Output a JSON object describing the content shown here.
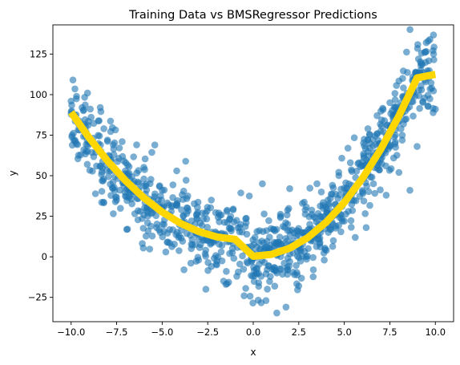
{
  "chart_data": {
    "type": "scatter",
    "title": "Training Data vs BMSRegressor Predictions",
    "xlabel": "x",
    "ylabel": "y",
    "xlim": [
      -11.0,
      11.0
    ],
    "ylim": [
      -40,
      143
    ],
    "xticks": [
      -10.0,
      -7.5,
      -5.0,
      -2.5,
      0.0,
      2.5,
      5.0,
      7.5,
      10.0
    ],
    "xtick_labels": [
      "−10.0",
      "−7.5",
      "−5.0",
      "−2.5",
      "0.0",
      "2.5",
      "5.0",
      "7.5",
      "10.0"
    ],
    "yticks": [
      -25,
      0,
      25,
      50,
      75,
      100,
      125
    ],
    "ytick_labels": [
      "−25",
      "0",
      "25",
      "50",
      "75",
      "100",
      "125"
    ],
    "grid": false,
    "legend": "none",
    "series": [
      {
        "kind": "scatter",
        "color": "#1f77b4",
        "opacity": 0.6,
        "n_points": 1000,
        "points": [
          [
            -10.0,
            96
          ],
          [
            -9.9,
            109
          ],
          [
            -9.8,
            72
          ],
          [
            -9.7,
            99
          ],
          [
            -9.5,
            81
          ],
          [
            -9.4,
            92
          ],
          [
            -9.3,
            66
          ],
          [
            -9.1,
            101
          ],
          [
            -8.9,
            86
          ],
          [
            -8.6,
            56
          ],
          [
            -8.4,
            92
          ],
          [
            -8.2,
            79
          ],
          [
            -7.9,
            62
          ],
          [
            -7.7,
            46
          ],
          [
            -7.5,
            35
          ],
          [
            -7.2,
            71
          ],
          [
            -7.0,
            58
          ],
          [
            -6.8,
            41
          ],
          [
            -6.5,
            40
          ],
          [
            -6.4,
            69
          ],
          [
            -6.2,
            28
          ],
          [
            -6.0,
            48
          ],
          [
            -5.8,
            21
          ],
          [
            -5.5,
            35
          ],
          [
            -5.3,
            18
          ],
          [
            -5.0,
            41
          ],
          [
            -4.8,
            3
          ],
          [
            -4.5,
            28
          ],
          [
            -4.2,
            53
          ],
          [
            -4.1,
            12
          ],
          [
            -3.8,
            -8
          ],
          [
            -3.6,
            30
          ],
          [
            -3.4,
            5
          ],
          [
            -3.2,
            20
          ],
          [
            -3.0,
            -2
          ],
          [
            -2.8,
            27
          ],
          [
            -2.6,
            -20
          ],
          [
            -2.5,
            10
          ],
          [
            -2.3,
            35
          ],
          [
            -2.0,
            -5
          ],
          [
            -1.8,
            14
          ],
          [
            -1.5,
            -17
          ],
          [
            -1.3,
            2
          ],
          [
            -1.1,
            29
          ],
          [
            -0.9,
            -12
          ],
          [
            -0.7,
            20
          ],
          [
            -0.5,
            -24
          ],
          [
            -0.3,
            6
          ],
          [
            -0.1,
            -3
          ],
          [
            0.1,
            12
          ],
          [
            0.3,
            -16
          ],
          [
            0.5,
            45
          ],
          [
            0.7,
            -27
          ],
          [
            0.9,
            5
          ],
          [
            1.1,
            17
          ],
          [
            1.3,
            -10
          ],
          [
            1.5,
            25
          ],
          [
            1.7,
            -4
          ],
          [
            1.8,
            -31
          ],
          [
            2.0,
            42
          ],
          [
            2.2,
            8
          ],
          [
            2.5,
            -18
          ],
          [
            2.7,
            33
          ],
          [
            2.9,
            0
          ],
          [
            3.1,
            20
          ],
          [
            3.3,
            -8
          ],
          [
            3.5,
            45
          ],
          [
            3.7,
            15
          ],
          [
            3.9,
            -2
          ],
          [
            4.1,
            35
          ],
          [
            4.4,
            10
          ],
          [
            4.7,
            50
          ],
          [
            5.0,
            22
          ],
          [
            5.2,
            67
          ],
          [
            5.4,
            35
          ],
          [
            5.6,
            12
          ],
          [
            5.8,
            58
          ],
          [
            6.0,
            40
          ],
          [
            6.2,
            18
          ],
          [
            6.4,
            70
          ],
          [
            6.6,
            45
          ],
          [
            6.8,
            87
          ],
          [
            7.0,
            60
          ],
          [
            7.3,
            38
          ],
          [
            7.5,
            95
          ],
          [
            7.8,
            75
          ],
          [
            8.0,
            52
          ],
          [
            8.2,
            110
          ],
          [
            8.4,
            85
          ],
          [
            8.6,
            41
          ],
          [
            8.8,
            102
          ],
          [
            9.0,
            68
          ],
          [
            9.2,
            118
          ],
          [
            9.4,
            98
          ],
          [
            9.5,
            132
          ],
          [
            9.7,
            134
          ],
          [
            9.8,
            104
          ],
          [
            9.9,
            125
          ],
          [
            10.0,
            91
          ]
        ]
      },
      {
        "kind": "line",
        "name": "BMSRegressor",
        "color": "#ffd700",
        "x": [
          -10,
          -9,
          -8,
          -7,
          -6,
          -5,
          -4,
          -3,
          -2,
          -1,
          0,
          1,
          2,
          3,
          4,
          5,
          6,
          7,
          8,
          9,
          10
        ],
        "y": [
          89.1,
          73.2,
          59.1,
          46.8,
          36.3,
          27.6,
          20.7,
          15.6,
          12.3,
          10.8,
          0.3,
          1.5,
          5.3,
          11.9,
          21.3,
          33.5,
          48.5,
          66.3,
          86.9,
          110.3,
          112.5
        ]
      }
    ]
  }
}
